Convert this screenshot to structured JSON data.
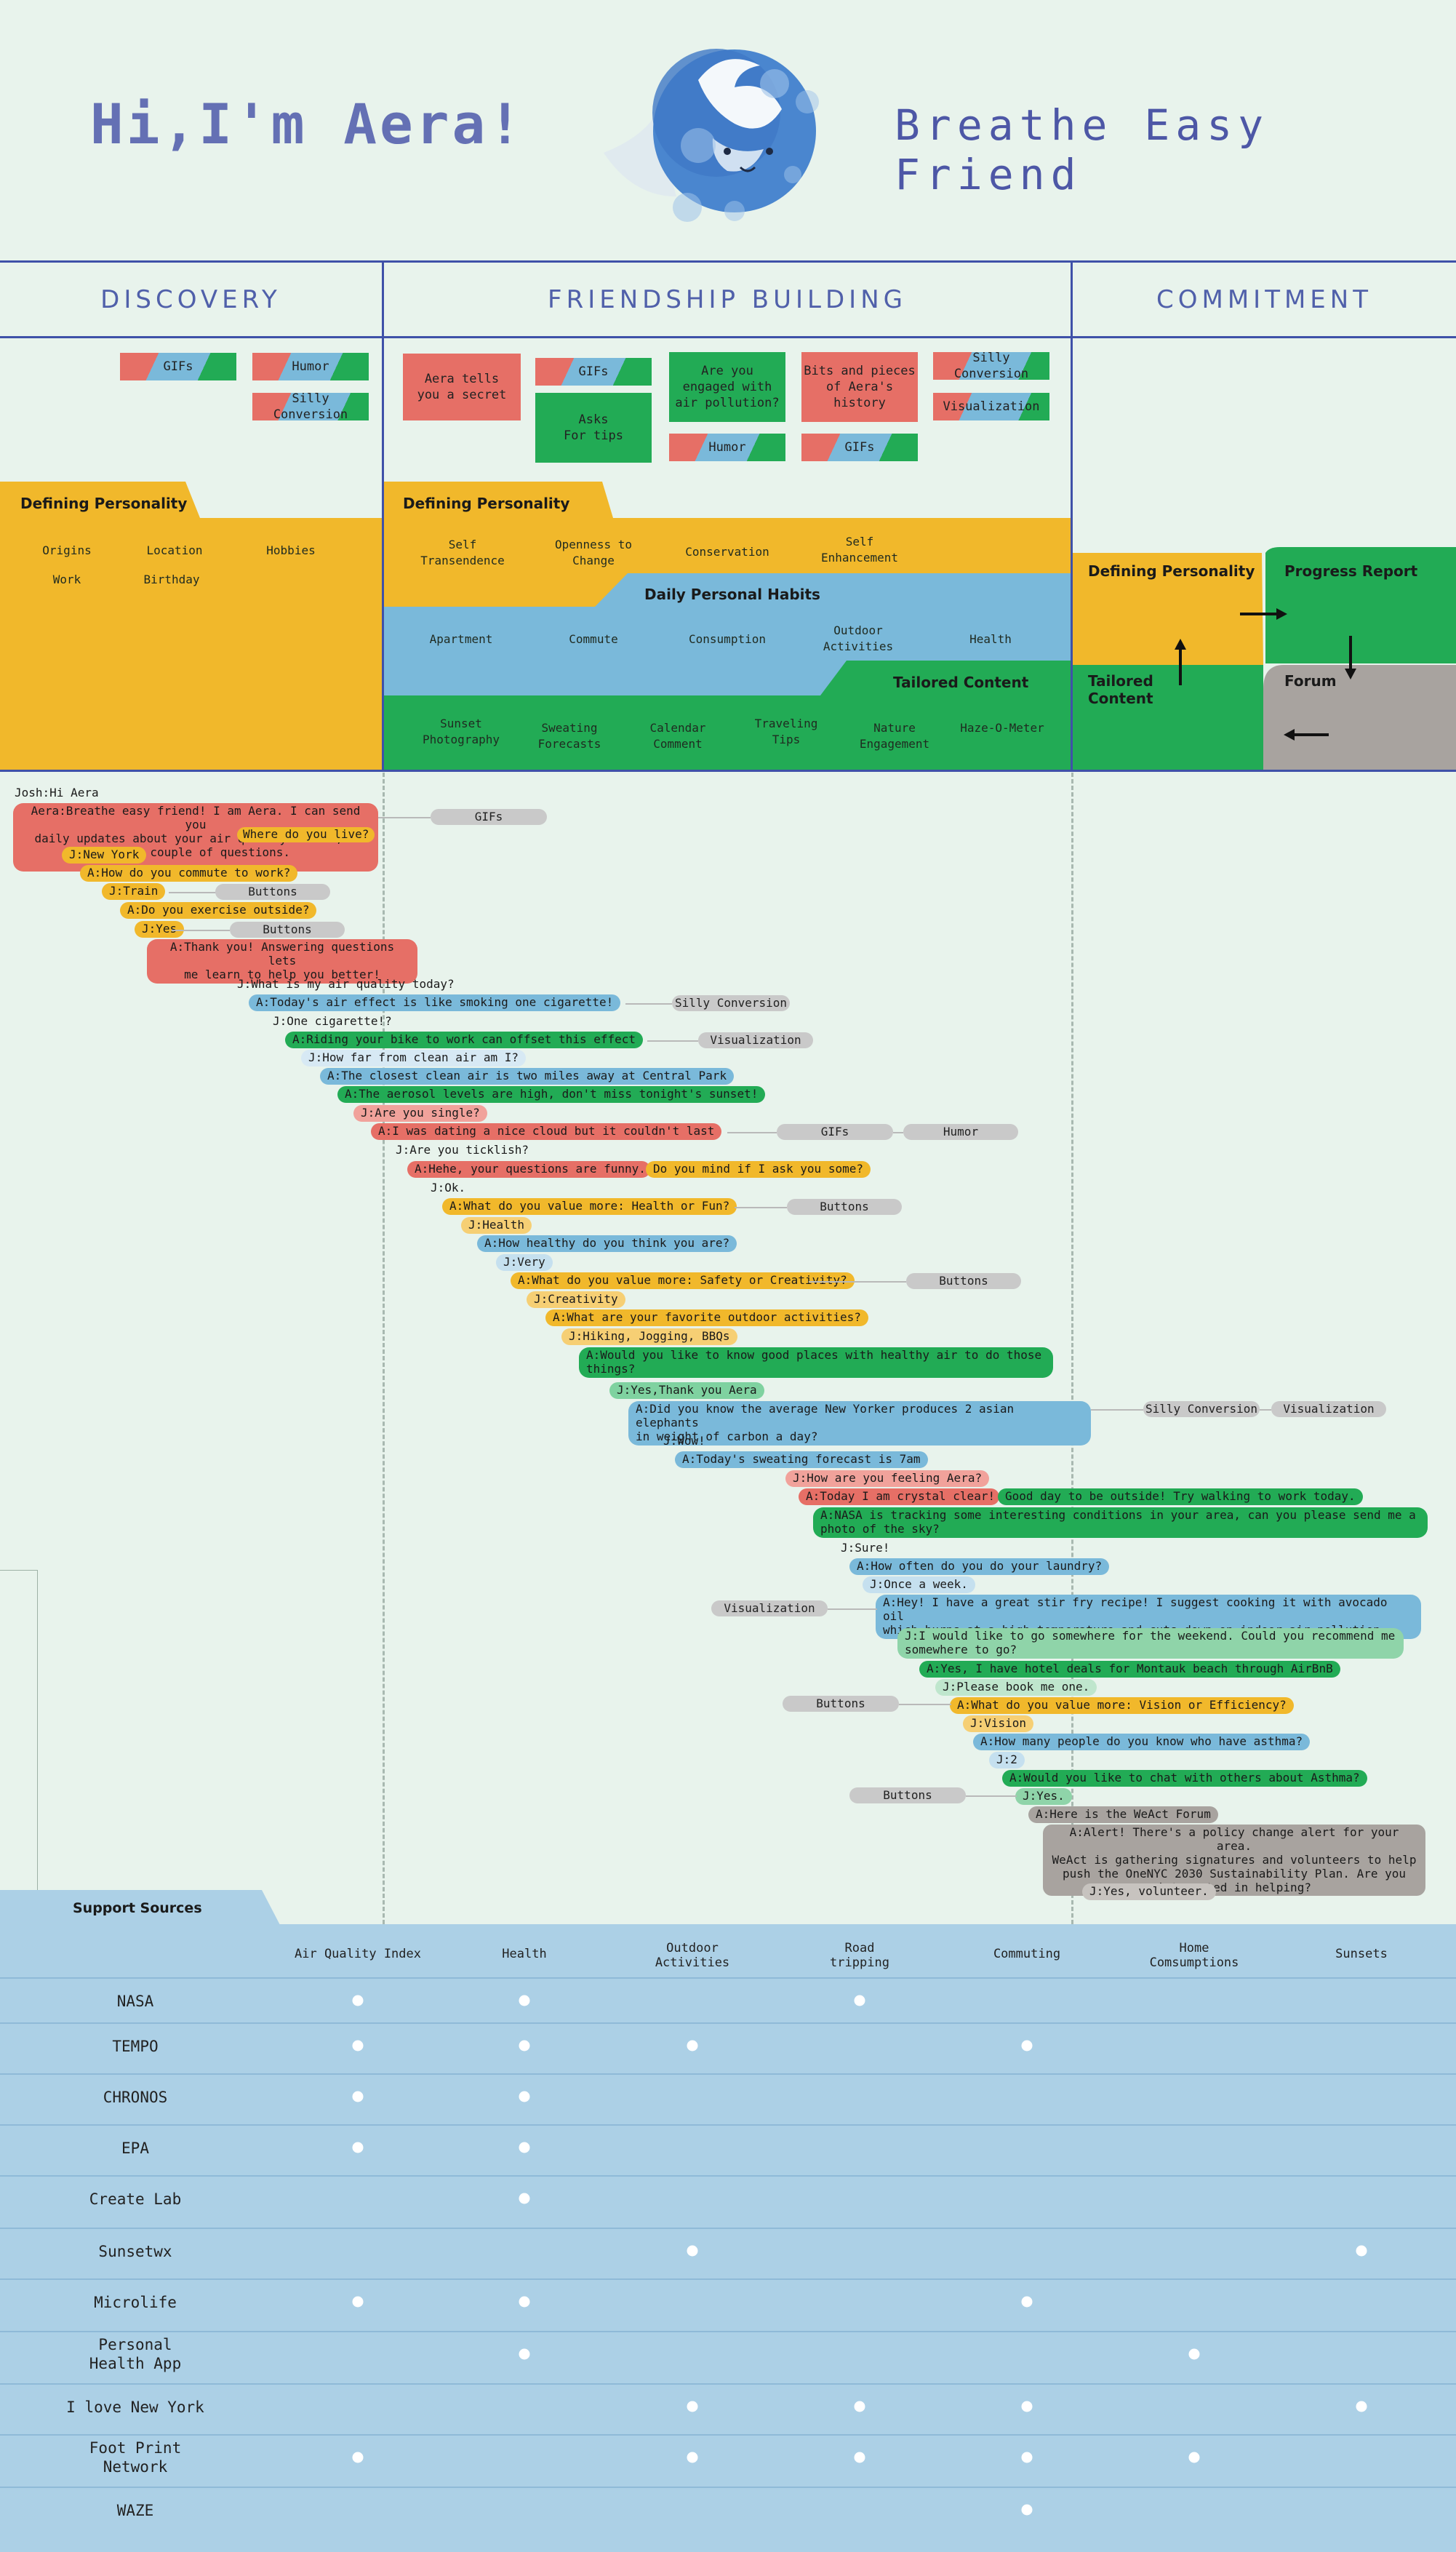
{
  "header": {
    "title": "Hi,I'm Aera!",
    "subtitle": "Breathe Easy Friend"
  },
  "phases": [
    "DISCOVERY",
    "FRIENDSHIP BUILDING",
    "COMMITMENT"
  ],
  "discovery": {
    "cards": [
      "GIFs",
      "Humor",
      "Silly Conversion"
    ],
    "tab_label": "Defining Personality",
    "items": [
      "Origins",
      "Location",
      "Hobbies",
      "Work",
      "Birthday"
    ]
  },
  "friendship": {
    "cards": [
      "Aera tells\nyou a secret",
      "GIFs",
      "Asks\nFor tips",
      "Are you\nengaged with\nair pollution?",
      "Humor",
      "Bits and pieces\nof Aera's\nhistory",
      "GIFs",
      "Silly Conversion",
      "Visualization"
    ],
    "defining_label": "Defining Personality",
    "defining_items": [
      "Self\nTransendence",
      "Openness to\nChange",
      "Conservation",
      "Self\nEnhancement"
    ],
    "habits_label": "Daily Personal Habits",
    "habits_items": [
      "Apartment",
      "Commute",
      "Consumption",
      "Outdoor\nActivities",
      "Health"
    ],
    "tailored_label": "Tailored Content",
    "tailored_items": [
      "Sunset\nPhotography",
      "Sweating\nForecasts",
      "Calendar\nComment",
      "Traveling\nTips",
      "Nature\nEngagement",
      "Haze-O-Meter"
    ]
  },
  "commitment": {
    "labels": [
      "Defining Personality",
      "Progress Report",
      "Tailored\nContent",
      "Forum"
    ]
  },
  "conversation": [
    "Josh:Hi Aera",
    "Aera:Breathe easy friend! I am Aera. I can send you\ndaily updates about your air quality. First, I\nhave a couple of questions.",
    "Where do you live?",
    "J:New York",
    "A:How do you commute to work?",
    "J:Train",
    "A:Do you exercise outside?",
    "J:Yes",
    "A:Thank you! Answering questions lets\nme learn to help you better!",
    "J:What is my air quality today?",
    "A:Today's air effect is like smoking one cigarette!",
    "J:One cigarette!?",
    "A:Riding your bike to work can offset this effect",
    "J:How far from clean air am I?",
    "A:The closest clean air is two miles away at Central Park",
    "A:The aerosol levels are high, don't miss tonight's sunset!",
    "J:Are you single?",
    "A:I was dating a nice cloud but it couldn't last",
    "J:Are you ticklish?",
    "A:Hehe, your questions are funny.",
    "Do you mind if I ask you some?",
    "J:Ok.",
    "A:What do you value more: Health or Fun?",
    "J:Health",
    "A:How healthy do you think you are?",
    "J:Very",
    "A:What do you value more: Safety or Creativity?",
    "J:Creativity",
    "A:What are your favorite outdoor activities?",
    "J:Hiking, Jogging, BBQs",
    "A:Would you like to know good places with healthy air to do those\nthings?",
    "J:Yes,Thank you Aera",
    "A:Did you know the average New Yorker produces 2 asian elephants\nin weight of carbon a day?",
    "J:Wow!",
    "A:Today's sweating forecast is 7am",
    "J:How are you feeling Aera?",
    "A:Today I am crystal clear!",
    "Good day to be outside! Try walking to work today.",
    "A:NASA is tracking some interesting conditions in your area, can you please send me a\nphoto of the sky?",
    "J:Sure!",
    "A:How often do you do your laundry?",
    "J:Once a week.",
    "A:Hey! I have a great stir fry recipe! I suggest cooking it with avocado oil\nwhich burns at a high temperature and cuts down on indoor air pollution.",
    "J:I would like to go somewhere for the weekend. Could you recommend me\nsomewhere to go?",
    "A:Yes, I have hotel deals for Montauk beach through AirBnB",
    "J:Please book me one.",
    "A:What do you value more: Vision or Efficiency?",
    "J:Vision",
    "A:How many people do you know who have asthma?",
    "J:2",
    "A:Would you like to chat with others about Asthma?",
    "J:Yes.",
    "A:Here is the WeAct Forum",
    "A:Alert! There's a policy change alert for your area.\nWeAct is gathering signatures and volunteers to help\npush the OneNYC 2030 Sustainability Plan. Are you\ninterested in helping?",
    "J:Yes, volunteer."
  ],
  "features": [
    "GIFs",
    "Buttons",
    "Buttons",
    "Silly Conversion",
    "Visualization",
    "GIFs",
    "Humor",
    "Buttons",
    "Buttons",
    "Silly Conversion",
    "Visualization",
    "Visualization",
    "Buttons",
    "Buttons"
  ],
  "support": {
    "title": "Support Sources",
    "columns": [
      "Air Quality Index",
      "Health",
      "Outdoor\nActivities",
      "Road\ntripping",
      "Commuting",
      "Home\nComsumptions",
      "Sunsets"
    ],
    "sources": [
      {
        "name": "NASA",
        "cells": [
          1,
          1,
          0,
          1,
          0,
          0,
          0
        ]
      },
      {
        "name": "TEMPO",
        "cells": [
          1,
          1,
          1,
          0,
          1,
          0,
          0
        ]
      },
      {
        "name": "CHRONOS",
        "cells": [
          1,
          1,
          0,
          0,
          0,
          0,
          0
        ]
      },
      {
        "name": "EPA",
        "cells": [
          1,
          1,
          0,
          0,
          0,
          0,
          0
        ]
      },
      {
        "name": "Create Lab",
        "cells": [
          0,
          1,
          0,
          0,
          0,
          0,
          0
        ]
      },
      {
        "name": "Sunsetwx",
        "cells": [
          0,
          0,
          1,
          0,
          0,
          0,
          1
        ]
      },
      {
        "name": "Microlife",
        "cells": [
          1,
          1,
          0,
          0,
          1,
          0,
          0
        ]
      },
      {
        "name": "Personal\nHealth App",
        "cells": [
          0,
          1,
          0,
          0,
          0,
          1,
          0
        ]
      },
      {
        "name": "I love New York",
        "cells": [
          0,
          0,
          1,
          1,
          1,
          0,
          1
        ]
      },
      {
        "name": "Foot Print\nNetwork",
        "cells": [
          1,
          0,
          1,
          1,
          1,
          1,
          0
        ]
      },
      {
        "name": "WAZE",
        "cells": [
          0,
          0,
          0,
          0,
          1,
          0,
          0
        ]
      }
    ]
  },
  "colors": {
    "red": "#e66f66",
    "green": "#22ab55",
    "blue": "#7ab9da",
    "yellow": "#f1b82b",
    "gray": "#a8a39f",
    "line": "#3f51a8",
    "bg": "#e8f3ec",
    "support_bg": "#acd0e6"
  }
}
